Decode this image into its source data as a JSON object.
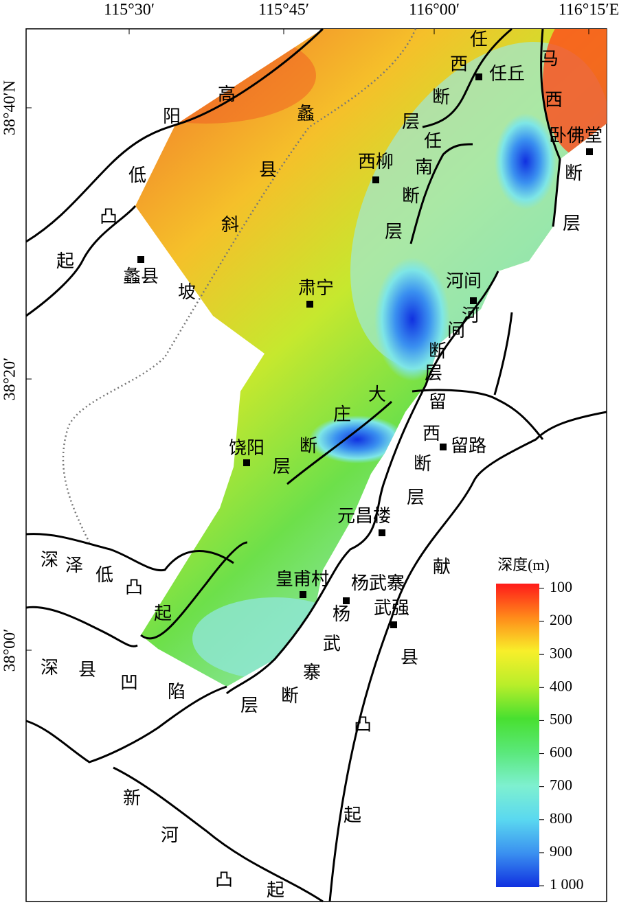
{
  "lon_labels": [
    "115°30′",
    "115°45′",
    "116°00′",
    "116°15′E"
  ],
  "lat_labels": [
    "38°40′N",
    "38°20′",
    "38°00′"
  ],
  "places": [
    "任丘",
    "卧佛堂",
    "西柳",
    "蠡县",
    "肃宁",
    "河间",
    "饶阳",
    "留路",
    "元昌楼",
    "皇甫村",
    "杨武寨",
    "武强"
  ],
  "structure_labels": [
    {
      "chars": [
        "高",
        "阳",
        "低",
        "凸",
        "起"
      ]
    },
    {
      "chars": [
        "蠡",
        "县",
        "斜",
        "坡"
      ]
    },
    {
      "chars": [
        "任",
        "西",
        "断",
        "层"
      ]
    },
    {
      "chars": [
        "任",
        "南",
        "断",
        "层"
      ]
    },
    {
      "chars": [
        "马",
        "西",
        "断",
        "层"
      ]
    },
    {
      "chars": [
        "河",
        "间",
        "断",
        "层"
      ]
    },
    {
      "chars": [
        "大",
        "庄",
        "断",
        "层"
      ]
    },
    {
      "chars": [
        "留",
        "西",
        "断",
        "层"
      ]
    },
    {
      "chars": [
        "深",
        "泽",
        "低",
        "凸",
        "起"
      ]
    },
    {
      "chars": [
        "献",
        "县",
        "凸",
        "起"
      ]
    },
    {
      "chars": [
        "深",
        "县",
        "凹",
        "陷"
      ]
    },
    {
      "chars": [
        "杨",
        "武",
        "寨",
        "断",
        "层"
      ]
    },
    {
      "chars": [
        "新",
        "河",
        "凸",
        "起"
      ]
    }
  ],
  "colorbar": {
    "title": "深度(m)",
    "range": [
      100,
      1000
    ],
    "ticks": [
      100,
      200,
      300,
      400,
      500,
      600,
      700,
      800,
      900,
      {
        "value": 1000,
        "label": "1 000"
      }
    ],
    "colors": [
      "#ff1a1a",
      "#ff8a1a",
      "#f8ef2a",
      "#b9ee2a",
      "#48e030",
      "#5ae87a",
      "#7ef0d0",
      "#5ad8f0",
      "#3a90f0",
      "#1030e0"
    ]
  }
}
